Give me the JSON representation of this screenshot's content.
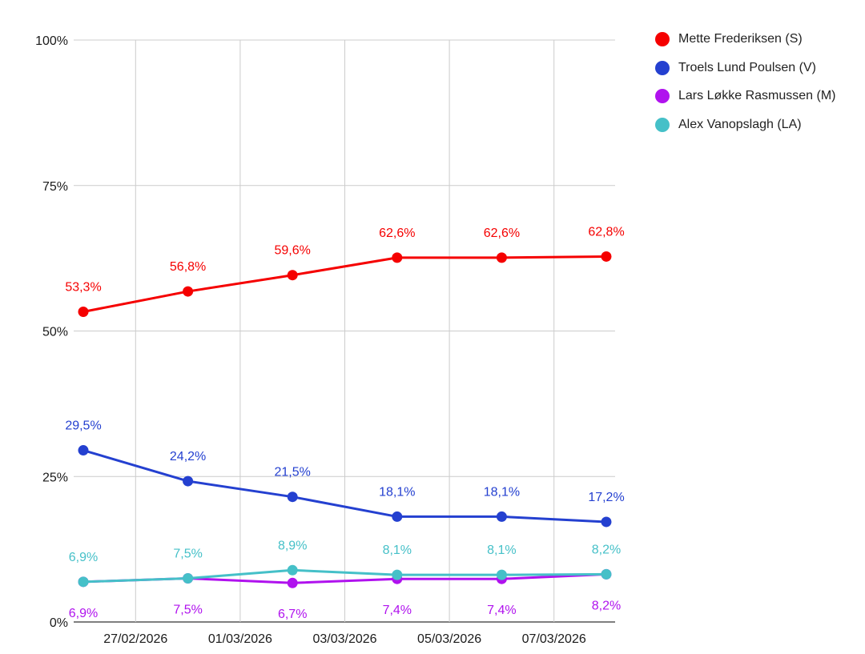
{
  "chart_data": {
    "type": "line",
    "x": [
      "26/02/2026",
      "28/02/2026",
      "02/03/2026",
      "04/03/2026",
      "06/03/2026",
      "08/03/2026"
    ],
    "x_tick_labels": [
      "27/02/2026",
      "01/03/2026",
      "03/03/2026",
      "05/03/2026",
      "07/03/2026"
    ],
    "y_tick_labels": [
      "0%",
      "25%",
      "50%",
      "75%",
      "100%"
    ],
    "ylim": [
      0,
      100
    ],
    "grid": true,
    "legend_position": "right",
    "series": [
      {
        "name": "Mette Frederiksen (S)",
        "color": "#f50000",
        "values": [
          53.3,
          56.8,
          59.6,
          62.6,
          62.6,
          62.8
        ],
        "labels": [
          "53,3%",
          "56,8%",
          "59,6%",
          "62,6%",
          "62,6%",
          "62,8%"
        ],
        "label_position": "above"
      },
      {
        "name": "Troels Lund Poulsen (V)",
        "color": "#2440d0",
        "values": [
          29.5,
          24.2,
          21.5,
          18.1,
          18.1,
          17.2
        ],
        "labels": [
          "29,5%",
          "24,2%",
          "21,5%",
          "18,1%",
          "18,1%",
          "17,2%"
        ],
        "label_position": "above"
      },
      {
        "name": "Lars Løkke Rasmussen (M)",
        "color": "#b012ee",
        "values": [
          6.9,
          7.5,
          6.7,
          7.4,
          7.4,
          8.2
        ],
        "labels": [
          "6,9%",
          "7,5%",
          "6,7%",
          "7,4%",
          "7,4%",
          "8,2%"
        ],
        "label_position": "below"
      },
      {
        "name": "Alex Vanopslagh (LA)",
        "color": "#45c0c8",
        "values": [
          6.9,
          7.5,
          8.9,
          8.1,
          8.1,
          8.2
        ],
        "labels": [
          "6,9%",
          "7,5%",
          "8,9%",
          "8,1%",
          "8,1%",
          "8,2%"
        ],
        "label_position": "above"
      }
    ]
  }
}
